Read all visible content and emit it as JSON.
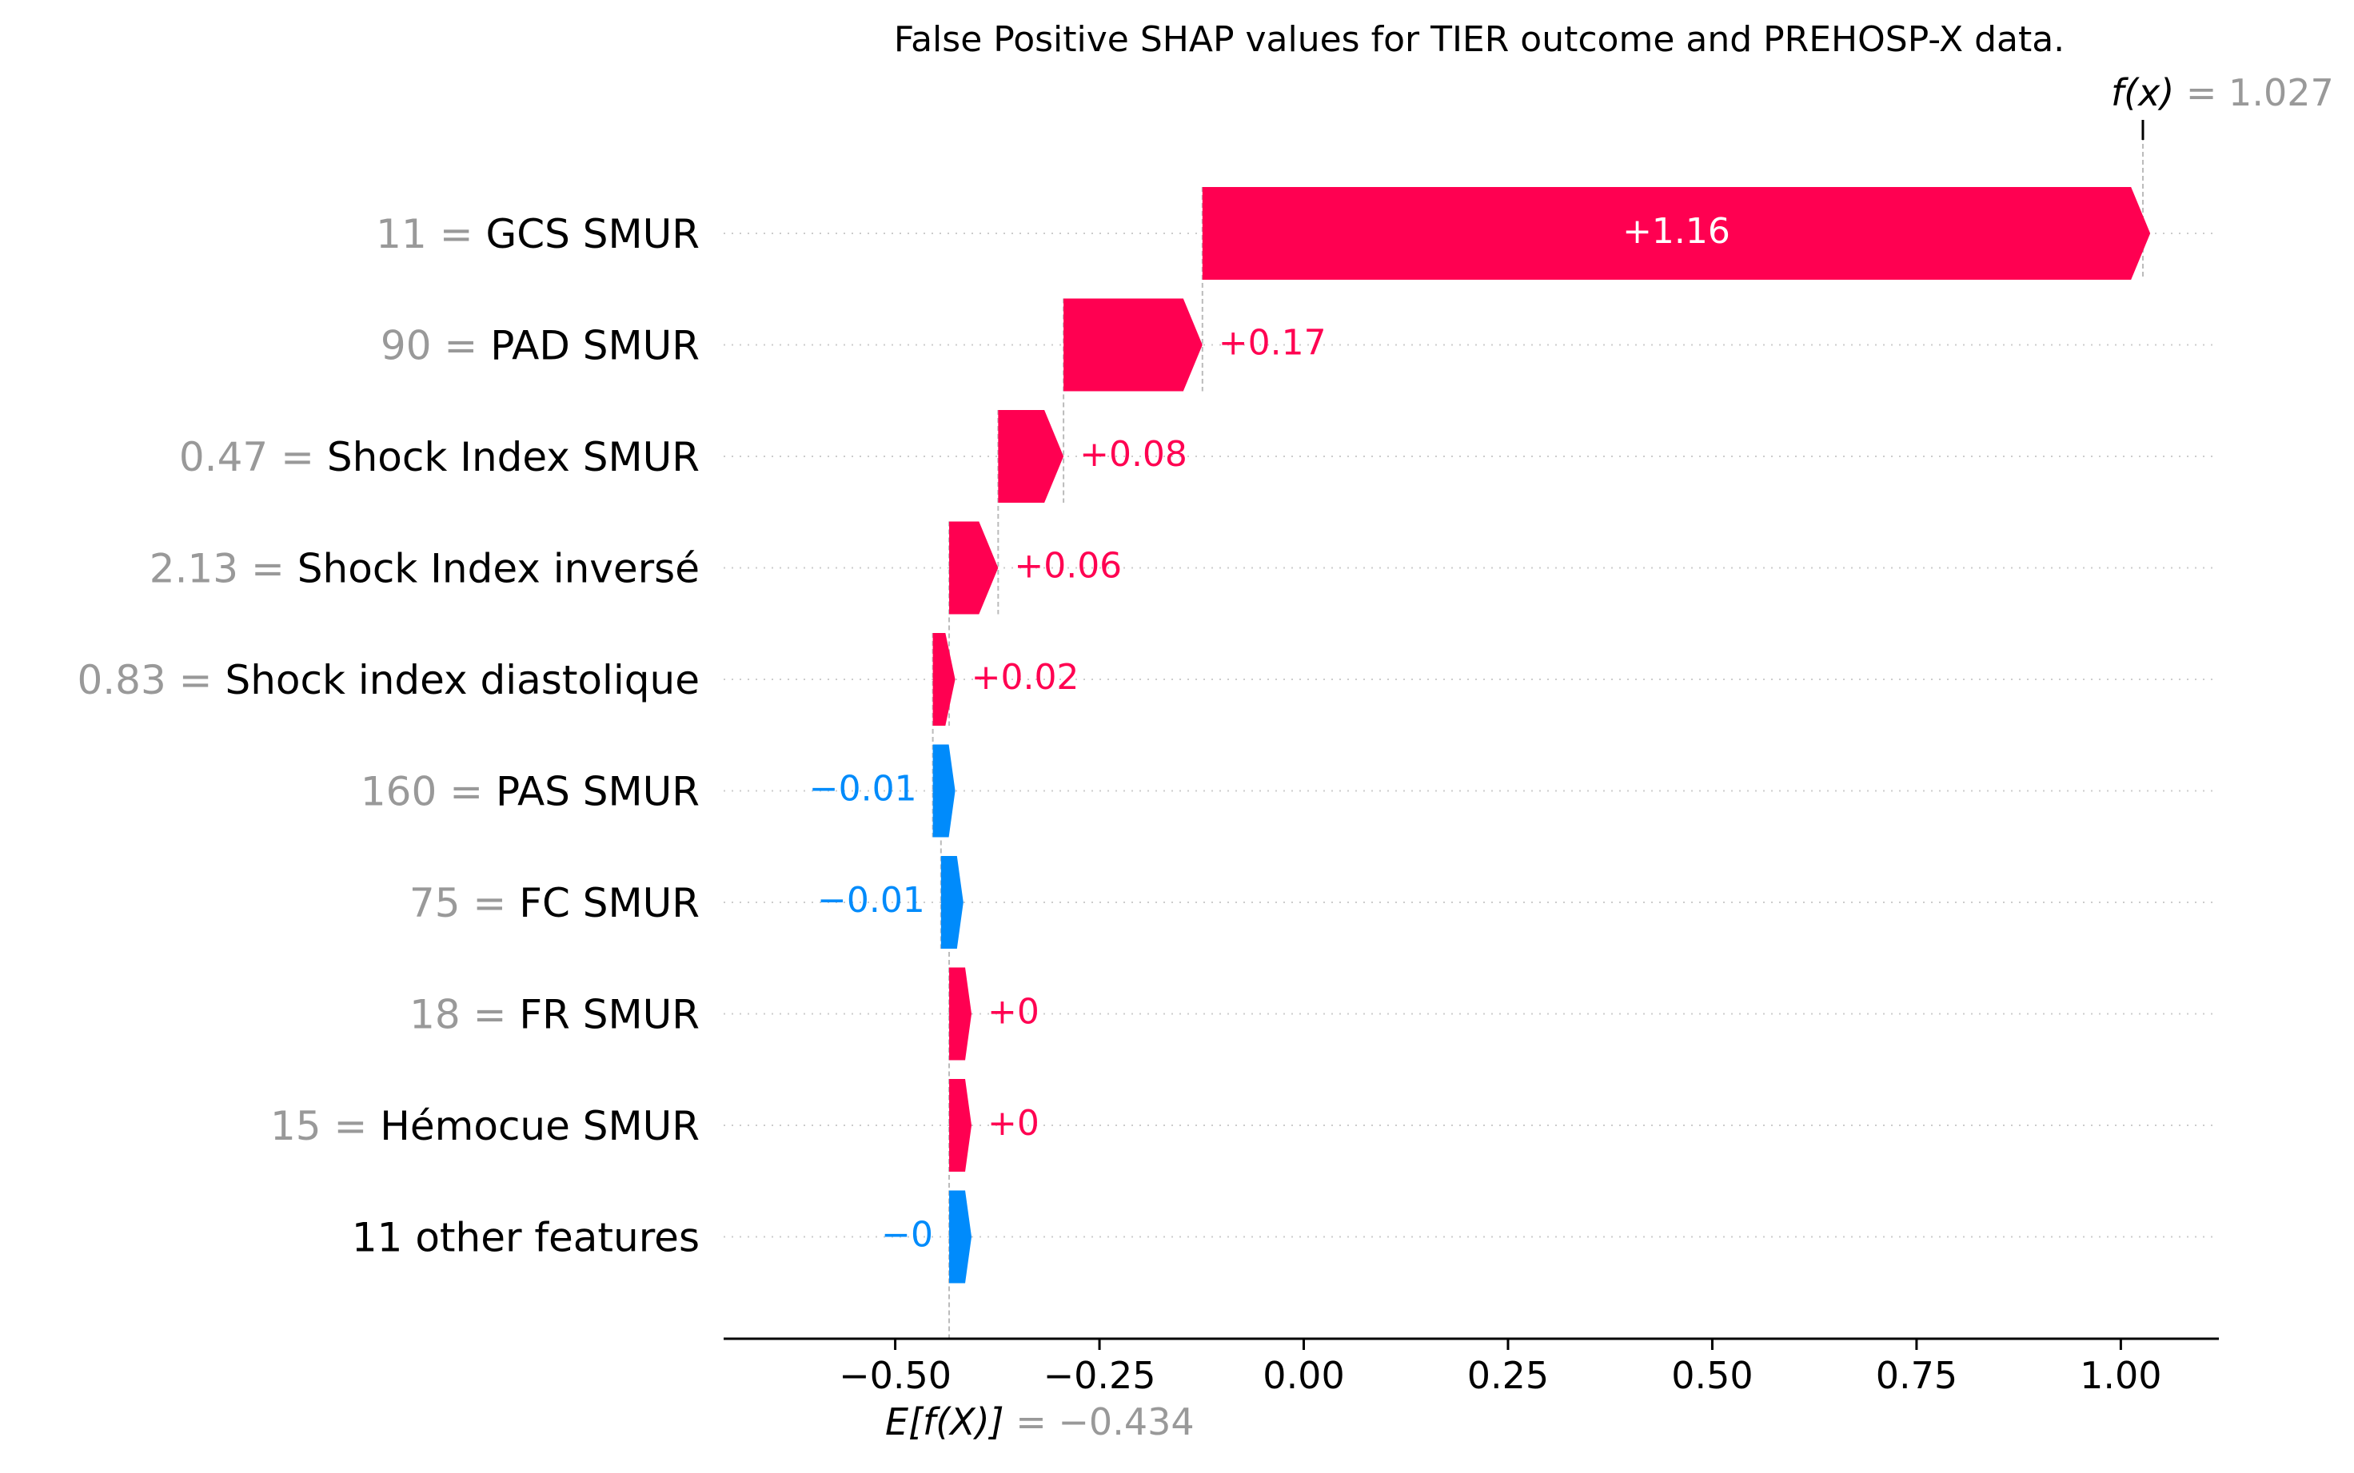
{
  "chart_data": {
    "type": "waterfall",
    "title": "False Positive SHAP values for TIER outcome and PREHOSP-X data.",
    "base_value": -0.434,
    "output_value": 1.027,
    "base_label": "E[f(X)] = −0.434",
    "output_label": "f(x) = 1.027",
    "xlim": [
      -0.71,
      1.12
    ],
    "xticks": [
      -0.5,
      -0.25,
      0.0,
      0.25,
      0.5,
      0.75,
      1.0
    ],
    "xtick_labels": [
      "−0.50",
      "−0.25",
      "0.00",
      "0.25",
      "0.50",
      "0.75",
      "1.00"
    ],
    "grid": "dotted horizontal per row",
    "colors": {
      "positive": "#ff0051",
      "negative": "#008bfb",
      "feature_value": "#999999",
      "text": "#000000"
    },
    "features": [
      {
        "value": "11",
        "name": "GCS SMUR",
        "shap": 1.16,
        "label": "+1.16"
      },
      {
        "value": "90",
        "name": "PAD  SMUR",
        "shap": 0.17,
        "label": "+0.17"
      },
      {
        "value": "0.47",
        "name": "Shock Index SMUR",
        "shap": 0.08,
        "label": "+0.08"
      },
      {
        "value": "2.13",
        "name": "Shock Index inversé",
        "shap": 0.06,
        "label": "+0.06"
      },
      {
        "value": "0.83",
        "name": "Shock index diastolique",
        "shap": 0.02,
        "label": "+0.02"
      },
      {
        "value": "160",
        "name": "PAS  SMUR",
        "shap": -0.01,
        "label": "−0.01"
      },
      {
        "value": "75",
        "name": "FC SMUR",
        "shap": -0.01,
        "label": "−0.01"
      },
      {
        "value": "18",
        "name": "FR SMUR",
        "shap": 0.0,
        "label": "+0"
      },
      {
        "value": "15",
        "name": "Hémocue SMUR",
        "shap": 0.0,
        "label": "+0"
      },
      {
        "value": "",
        "name": "11 other features",
        "shap": -0.0,
        "label": "−0"
      }
    ]
  }
}
